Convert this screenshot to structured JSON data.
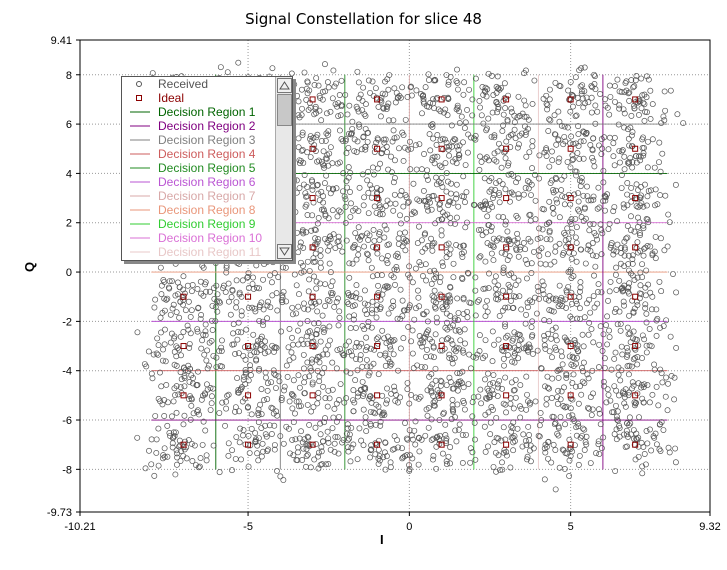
{
  "chart_data": {
    "type": "scatter",
    "title": "Signal Constellation for slice 48",
    "xlabel": "I",
    "ylabel": "Q",
    "xlim": [
      -10.21,
      9.32
    ],
    "ylim": [
      -9.73,
      9.41
    ],
    "xticks": [
      "-10.21",
      "-5",
      "0",
      "5",
      "9.32"
    ],
    "yticks": [
      "9.41",
      "8",
      "6",
      "4",
      "2",
      "0",
      "-2",
      "-4",
      "-6",
      "-8",
      "-9.73"
    ],
    "grid": true,
    "legend_position": "top-left",
    "series": [
      {
        "name": "Received",
        "marker": "open-circle",
        "color": "#555555",
        "description_spread": 0.6,
        "centers_from_ideal": true
      },
      {
        "name": "Ideal",
        "marker": "open-square",
        "color": "#8b0000",
        "x": [
          -7,
          -5,
          -3,
          -1,
          1,
          3,
          5,
          7
        ],
        "y": [
          -7,
          -5,
          -3,
          -1,
          1,
          3,
          5,
          7
        ]
      }
    ],
    "legend": [
      {
        "label": "Received",
        "color": "#555555",
        "marker": "circle"
      },
      {
        "label": "Ideal",
        "color": "#8b0000",
        "marker": "square"
      },
      {
        "label": "Decision Region 1",
        "color": "#006400",
        "marker": "line"
      },
      {
        "label": "Decision Region 2",
        "color": "#800080",
        "marker": "line"
      },
      {
        "label": "Decision Region 3",
        "color": "#808080",
        "marker": "line"
      },
      {
        "label": "Decision Region 4",
        "color": "#cd5c5c",
        "marker": "line"
      },
      {
        "label": "Decision Region 5",
        "color": "#228b22",
        "marker": "line"
      },
      {
        "label": "Decision Region 6",
        "color": "#ba55d3",
        "marker": "line"
      },
      {
        "label": "Decision Region 7",
        "color": "#d8a8a8",
        "marker": "line"
      },
      {
        "label": "Decision Region 8",
        "color": "#e9967a",
        "marker": "line"
      },
      {
        "label": "Decision Region 9",
        "color": "#32cd32",
        "marker": "line"
      },
      {
        "label": "Decision Region 10",
        "color": "#da70d6",
        "marker": "line"
      },
      {
        "label": "Decision Region 11",
        "color": "#e8c8c8",
        "marker": "line"
      }
    ]
  }
}
